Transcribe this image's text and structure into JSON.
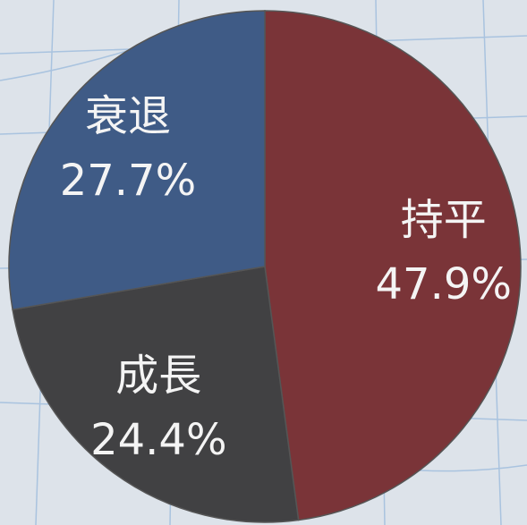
{
  "chart_data": {
    "type": "pie",
    "categories": [
      "持平",
      "成長",
      "衰退"
    ],
    "values": [
      47.9,
      24.4,
      27.7
    ],
    "value_labels": [
      "47.9%",
      "24.4%",
      "27.7%"
    ],
    "colors": [
      "#7a3438",
      "#414143",
      "#3f5b86"
    ]
  }
}
